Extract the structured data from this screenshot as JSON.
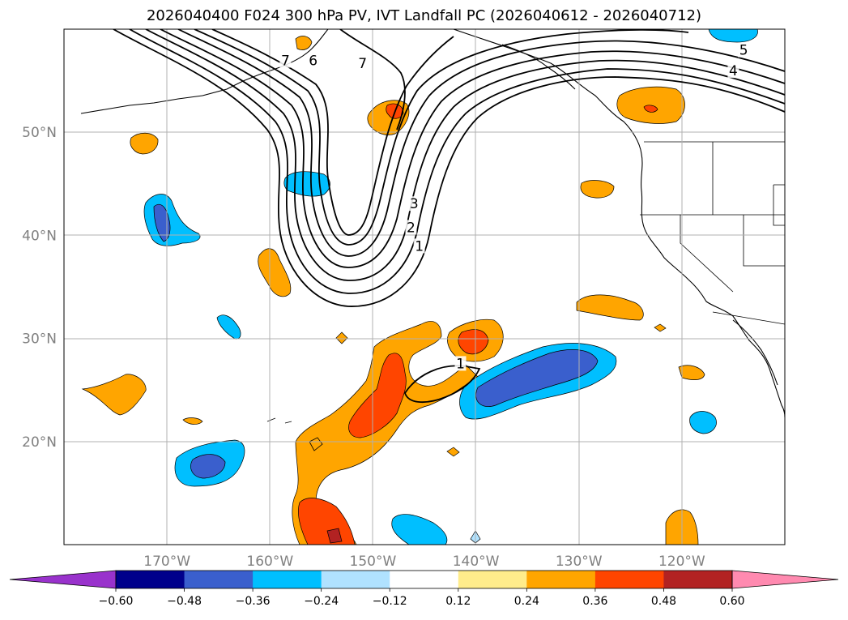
{
  "title": "2026040400 F024 300 hPa PV, IVT Landfall PC (2026040612 - 2026040712)",
  "map": {
    "projection": "equirectangular",
    "lon_range": [
      -180,
      -110
    ],
    "lat_range": [
      10,
      60
    ],
    "grid": true,
    "lat_ticks": [
      {
        "value": 20,
        "label": "20°N"
      },
      {
        "value": 30,
        "label": "30°N"
      },
      {
        "value": 40,
        "label": "40°N"
      },
      {
        "value": 50,
        "label": "50°N"
      }
    ],
    "lon_ticks": [
      {
        "value": -170,
        "label": "170°W"
      },
      {
        "value": -160,
        "label": "160°W"
      },
      {
        "value": -150,
        "label": "150°W"
      },
      {
        "value": -140,
        "label": "140°W"
      },
      {
        "value": -130,
        "label": "130°W"
      },
      {
        "value": -120,
        "label": "120°W"
      }
    ]
  },
  "contours": {
    "color": "#000000",
    "labels": [
      {
        "text": "7",
        "lon": -158.5,
        "lat": 56.9
      },
      {
        "text": "7",
        "lon": -151.0,
        "lat": 56.6
      },
      {
        "text": "6",
        "lon": -155.8,
        "lat": 56.9
      },
      {
        "text": "5",
        "lon": -114.0,
        "lat": 57.9
      },
      {
        "text": "4",
        "lon": -115.0,
        "lat": 55.9
      },
      {
        "text": "3",
        "lon": -146.0,
        "lat": 43.0
      },
      {
        "text": "2",
        "lon": -146.3,
        "lat": 40.7
      },
      {
        "text": "1",
        "lon": -145.5,
        "lat": 38.9
      },
      {
        "text": "1",
        "lon": -141.5,
        "lat": 27.5
      }
    ]
  },
  "colorbar": {
    "levels": [
      -0.6,
      -0.48,
      -0.36,
      -0.24,
      -0.12,
      0.12,
      0.24,
      0.36,
      0.48,
      0.6
    ],
    "tick_labels": [
      "−0.60",
      "−0.48",
      "−0.36",
      "−0.24",
      "−0.12",
      "0.12",
      "0.24",
      "0.36",
      "0.48",
      "0.60"
    ],
    "under_color": "#9932cc",
    "over_color": "#ff8ab0",
    "colors": [
      "#00008b",
      "#3a5fcd",
      "#00bfff",
      "#b0e2ff",
      "#ffffff",
      "#ffec8b",
      "#ffa500",
      "#ff4500",
      "#b22222"
    ]
  }
}
